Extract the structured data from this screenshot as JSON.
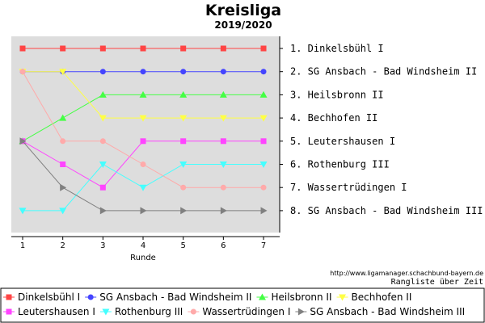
{
  "chart_data": {
    "type": "line",
    "title": "Kreisliga",
    "subtitle": "2019/2020",
    "xlabel": "Runde",
    "ylabel": "",
    "x": [
      1,
      2,
      3,
      4,
      5,
      6,
      7
    ],
    "y_inverted": true,
    "ylim": [
      0.5,
      9
    ],
    "grid": false,
    "legend_position": "bottom",
    "rank_labels": [
      "1. Dinkelsbühl I",
      "2. SG Ansbach - Bad Windsheim II",
      "3. Heilsbronn II",
      "4. Bechhofen II",
      "5. Leutershausen I",
      "6. Rothenburg III",
      "7. Wassertrüdingen I",
      "8. SG Ansbach - Bad Windsheim III"
    ],
    "series": [
      {
        "name": "Dinkelsbühl I",
        "color": "#ff4444",
        "marker": "square",
        "values": [
          1,
          1,
          1,
          1,
          1,
          1,
          1
        ]
      },
      {
        "name": "SG Ansbach - Bad Windsheim II",
        "color": "#4444ff",
        "marker": "circle",
        "values": [
          2,
          2,
          2,
          2,
          2,
          2,
          2
        ]
      },
      {
        "name": "Heilsbronn II",
        "color": "#44ff44",
        "marker": "triangle-up",
        "values": [
          5,
          4,
          3,
          3,
          3,
          3,
          3
        ]
      },
      {
        "name": "Bechhofen II",
        "color": "#ffff44",
        "marker": "triangle-down",
        "values": [
          2,
          2,
          4,
          4,
          4,
          4,
          4
        ]
      },
      {
        "name": "Leutershausen I",
        "color": "#ff44ff",
        "marker": "square",
        "values": [
          5,
          6,
          7,
          5,
          5,
          5,
          5
        ]
      },
      {
        "name": "Rothenburg III",
        "color": "#44ffff",
        "marker": "triangle-down",
        "values": [
          8,
          8,
          6,
          7,
          6,
          6,
          6
        ]
      },
      {
        "name": "Wassertrüdingen I",
        "color": "#ffaaaa",
        "marker": "circle",
        "values": [
          2,
          5,
          5,
          6,
          7,
          7,
          7
        ]
      },
      {
        "name": "SG Ansbach - Bad Windsheim III",
        "color": "#808080",
        "marker": "triangle-right",
        "values": [
          5,
          7,
          8,
          8,
          8,
          8,
          8
        ]
      }
    ]
  },
  "footer": {
    "source": "http://www.ligamanager.schachbund-bayern.de",
    "caption": "Rangliste über Zeit"
  }
}
